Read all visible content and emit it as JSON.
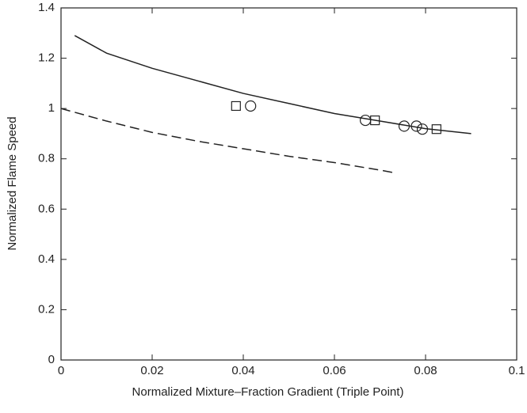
{
  "chart_data": {
    "type": "line",
    "xlabel": "Normalized Mixture–Fraction Gradient (Triple Point)",
    "ylabel": "Normalized Flame Speed",
    "xlim": [
      0,
      0.1
    ],
    "xticks": [
      0,
      0.02,
      0.04,
      0.06,
      0.08,
      0.1
    ],
    "ylim": [
      0,
      1.4
    ],
    "yticks": [
      0,
      0.2,
      0.4,
      0.6,
      0.8,
      1,
      1.2,
      1.4
    ],
    "grid": false,
    "series": [
      {
        "color": "#222222",
        "style": "solid",
        "x": [
          0.003,
          0.01,
          0.02,
          0.03,
          0.04,
          0.05,
          0.06,
          0.07,
          0.08,
          0.09
        ],
        "values": [
          1.29,
          1.22,
          1.16,
          1.11,
          1.06,
          1.02,
          0.98,
          0.95,
          0.92,
          0.9
        ]
      },
      {
        "color": "#222222",
        "style": "dashed",
        "x": [
          0,
          0.01,
          0.02,
          0.03,
          0.04,
          0.05,
          0.06,
          0.07,
          0.073
        ],
        "values": [
          1.0,
          0.95,
          0.905,
          0.87,
          0.84,
          0.81,
          0.785,
          0.755,
          0.745
        ]
      },
      {
        "color": "#222222",
        "style": "none",
        "marker": "square",
        "x": [
          0.0384,
          0.0689,
          0.0824
        ],
        "values": [
          1.01,
          0.953,
          0.918
        ]
      },
      {
        "color": "#222222",
        "style": "none",
        "marker": "circle",
        "x": [
          0.0416,
          0.0668,
          0.0753,
          0.078,
          0.0793
        ],
        "values": [
          1.01,
          0.953,
          0.93,
          0.93,
          0.918
        ]
      }
    ]
  }
}
